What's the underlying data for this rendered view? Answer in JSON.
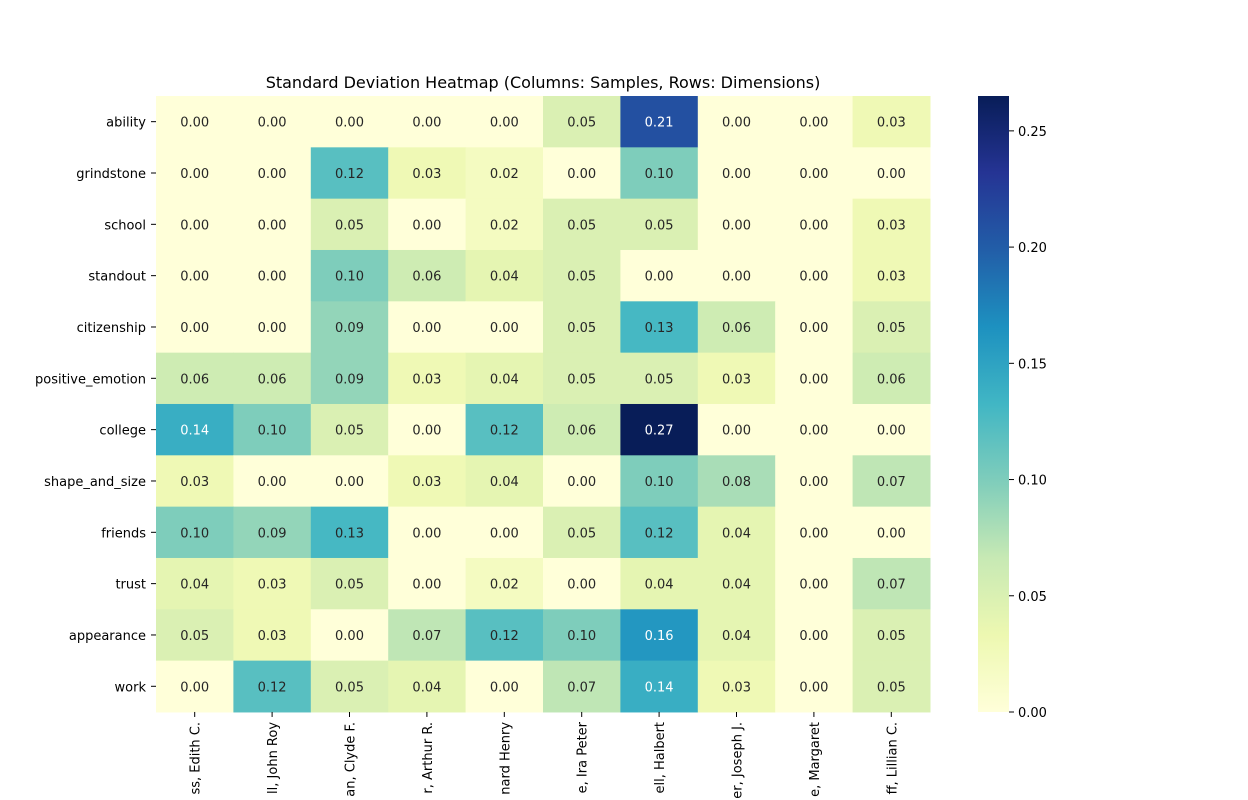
{
  "chart_data": {
    "type": "heatmap",
    "title": "Standard Deviation Heatmap (Columns: Samples, Rows: Dimensions)",
    "rows": [
      "ability",
      "grindstone",
      "school",
      "standout",
      "citizenship",
      "positive_emotion",
      "college",
      "shape_and_size",
      "friends",
      "trust",
      "appearance",
      "work"
    ],
    "columns": [
      "ss, Edith C.",
      "ll, John Roy",
      "an, Clyde F.",
      "r, Arthur R.",
      "nard Henry",
      "e, Ira Peter",
      "ell, Halbert",
      "er, Joseph J.",
      "e, Margaret",
      "ff, Lillian C."
    ],
    "values": [
      [
        0.0,
        0.0,
        0.0,
        0.0,
        0.0,
        0.05,
        0.21,
        0.0,
        0.0,
        0.03
      ],
      [
        0.0,
        0.0,
        0.12,
        0.03,
        0.02,
        0.0,
        0.1,
        0.0,
        0.0,
        0.0
      ],
      [
        0.0,
        0.0,
        0.05,
        0.0,
        0.02,
        0.05,
        0.05,
        0.0,
        0.0,
        0.03
      ],
      [
        0.0,
        0.0,
        0.1,
        0.06,
        0.04,
        0.05,
        0.0,
        0.0,
        0.0,
        0.03
      ],
      [
        0.0,
        0.0,
        0.09,
        0.0,
        0.0,
        0.05,
        0.13,
        0.06,
        0.0,
        0.05
      ],
      [
        0.06,
        0.06,
        0.09,
        0.03,
        0.04,
        0.05,
        0.05,
        0.03,
        0.0,
        0.06
      ],
      [
        0.14,
        0.1,
        0.05,
        0.0,
        0.12,
        0.06,
        0.27,
        0.0,
        0.0,
        0.0
      ],
      [
        0.03,
        0.0,
        0.0,
        0.03,
        0.04,
        0.0,
        0.1,
        0.08,
        0.0,
        0.07
      ],
      [
        0.1,
        0.09,
        0.13,
        0.0,
        0.0,
        0.05,
        0.12,
        0.04,
        0.0,
        0.0
      ],
      [
        0.04,
        0.03,
        0.05,
        0.0,
        0.02,
        0.0,
        0.04,
        0.04,
        0.0,
        0.07
      ],
      [
        0.05,
        0.03,
        0.0,
        0.07,
        0.12,
        0.1,
        0.16,
        0.04,
        0.0,
        0.05
      ],
      [
        0.0,
        0.12,
        0.05,
        0.04,
        0.0,
        0.07,
        0.14,
        0.03,
        0.0,
        0.05
      ]
    ],
    "colormap": "YlGnBu",
    "colorbar": {
      "range": [
        0.0,
        0.265
      ],
      "ticks": [
        0.0,
        0.05,
        0.1,
        0.15,
        0.2,
        0.25
      ],
      "tick_labels": [
        "0.00",
        "0.05",
        "0.10",
        "0.15",
        "0.20",
        "0.25"
      ]
    },
    "annotations": "cell values shown with two decimals",
    "xlabel": "",
    "ylabel": ""
  }
}
